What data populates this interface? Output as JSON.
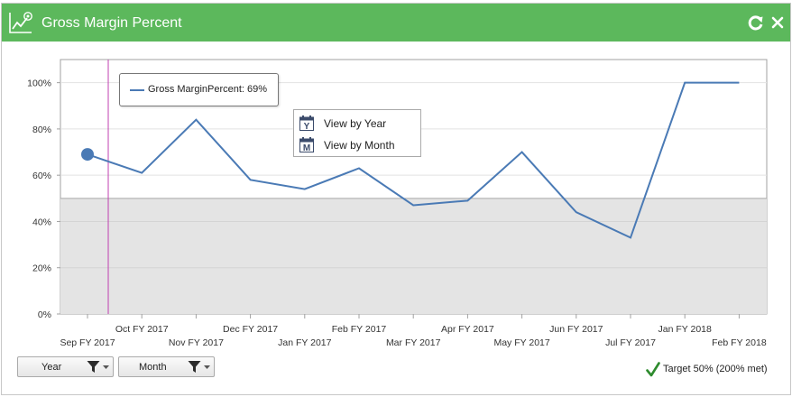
{
  "widget": {
    "title": "Gross Margin Percent",
    "icons": {
      "chart": "line-chart-icon",
      "refresh": "refresh-icon",
      "close": "close-icon"
    }
  },
  "tooltip": {
    "text": "Gross MarginPercent: 69%",
    "series_color": "#4a7ab5"
  },
  "context_menu": {
    "items": [
      {
        "icon": "calendar-year-icon",
        "letter": "Y",
        "label": "View by Year"
      },
      {
        "icon": "calendar-month-icon",
        "letter": "M",
        "label": "View by Month"
      }
    ]
  },
  "filters": {
    "year_label": "Year",
    "month_label": "Month"
  },
  "target": {
    "text": "Target 50% (200% met)",
    "color": "#2e8b2e"
  },
  "colors": {
    "header": "#5cb85c",
    "line": "#4a7ab5",
    "band": "#e4e4e4",
    "cursor": "#c040b0"
  },
  "chart_data": {
    "type": "line",
    "categories": [
      "Sep FY 2017",
      "Oct FY 2017",
      "Nov FY 2017",
      "Dec FY 2017",
      "Jan FY 2017",
      "Feb FY 2017",
      "Mar FY 2017",
      "Apr FY 2017",
      "May FY 2017",
      "Jun FY 2017",
      "Jul FY 2017",
      "Jan FY 2018",
      "Feb FY 2018"
    ],
    "series": [
      {
        "values": [
          69,
          61,
          84,
          58,
          54,
          63,
          47,
          49,
          70,
          44,
          33,
          100,
          100
        ]
      }
    ],
    "ylim": [
      0,
      110
    ],
    "yticks": [
      0,
      20,
      40,
      60,
      80,
      100
    ],
    "ytick_labels": [
      "0%",
      "20%",
      "40%",
      "60%",
      "80%",
      "100%"
    ],
    "target": 50,
    "highlighted_index": 0,
    "grid": true
  }
}
